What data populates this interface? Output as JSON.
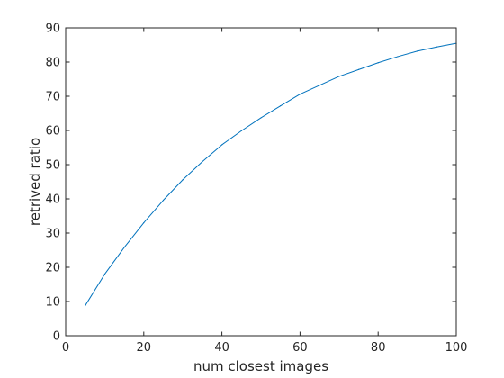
{
  "chart_data": {
    "type": "line",
    "title": "",
    "xlabel": "num closest images",
    "ylabel": "retrived ratio",
    "xlim": [
      0,
      100
    ],
    "ylim": [
      0,
      90
    ],
    "x_ticks": [
      "0",
      "20",
      "40",
      "60",
      "80",
      "100"
    ],
    "y_ticks": [
      "0",
      "10",
      "20",
      "30",
      "40",
      "50",
      "60",
      "70",
      "80",
      "90"
    ],
    "grid": false,
    "box": true,
    "series": [
      {
        "color": "#0072BD",
        "x": [
          5,
          10,
          15,
          20,
          25,
          30,
          35,
          40,
          45,
          50,
          55,
          60,
          65,
          70,
          75,
          80,
          85,
          90,
          95,
          100
        ],
        "y": [
          8.8,
          18.0,
          25.8,
          33.0,
          39.6,
          45.6,
          50.9,
          55.8,
          59.9,
          63.7,
          67.2,
          70.6,
          73.2,
          75.8,
          77.8,
          79.8,
          81.6,
          83.2,
          84.4,
          85.5
        ]
      }
    ]
  }
}
